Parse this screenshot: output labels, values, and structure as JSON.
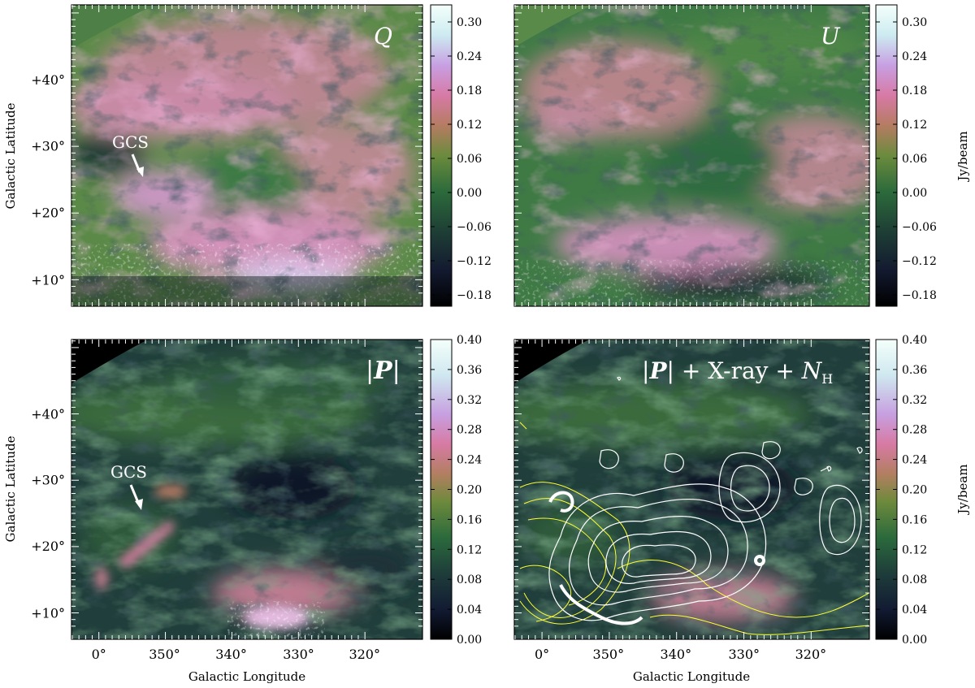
{
  "figure": {
    "axis_labels": {
      "ylabel": "Galactic Latitude",
      "xlabel": "Galactic Longitude",
      "cbar_label": "Jy/beam"
    },
    "x_ticks": [
      "0°",
      "350°",
      "340°",
      "330°",
      "320°"
    ],
    "y_ticks": [
      "+10°",
      "+20°",
      "+30°",
      "+40°"
    ],
    "colors": {
      "cmap": [
        "#000000",
        "#10142a",
        "#1f3d35",
        "#2d6a3a",
        "#6e8a3c",
        "#b07f62",
        "#d77aa3",
        "#c79fe0",
        "#d2eef0",
        "#f4fffa"
      ],
      "contour_xray": "#ffffff",
      "contour_nh": "#ffff33"
    }
  },
  "chart_data": [
    {
      "type": "heatmap",
      "panel": "Q",
      "title": "Q",
      "xlabel": "",
      "ylabel": "Galactic Latitude",
      "annotation": "GCS",
      "colorbar": {
        "ticks": [
          "0.30",
          "0.24",
          "0.18",
          "0.12",
          "0.06",
          "0.00",
          "−0.06",
          "−0.12",
          "−0.18"
        ],
        "range": [
          -0.2,
          0.33
        ]
      }
    },
    {
      "type": "heatmap",
      "panel": "U",
      "title": "U",
      "xlabel": "",
      "ylabel": "",
      "colorbar": {
        "ticks": [
          "0.30",
          "0.24",
          "0.18",
          "0.12",
          "0.06",
          "0.00",
          "−0.06",
          "−0.12",
          "−0.18"
        ],
        "range": [
          -0.2,
          0.33
        ],
        "label": "Jy/beam"
      }
    },
    {
      "type": "heatmap",
      "panel": "P",
      "title_parts": [
        "|",
        "P",
        "|"
      ],
      "xlabel": "Galactic Longitude",
      "ylabel": "Galactic Latitude",
      "annotation": "GCS",
      "colorbar": {
        "ticks": [
          "0.40",
          "0.36",
          "0.32",
          "0.28",
          "0.24",
          "0.20",
          "0.16",
          "0.12",
          "0.08",
          "0.04",
          "0.00"
        ],
        "range": [
          0.0,
          0.4
        ]
      }
    },
    {
      "type": "heatmap",
      "panel": "P+Xray+NH",
      "title_parts": [
        "|",
        "P",
        "|",
        " + X-ray + ",
        "N",
        "H"
      ],
      "xlabel": "Galactic Longitude",
      "ylabel": "",
      "colorbar": {
        "ticks": [
          "0.40",
          "0.36",
          "0.32",
          "0.28",
          "0.24",
          "0.20",
          "0.16",
          "0.12",
          "0.08",
          "0.04",
          "0.00"
        ],
        "range": [
          0.0,
          0.4
        ],
        "label": "Jy/beam"
      }
    }
  ]
}
